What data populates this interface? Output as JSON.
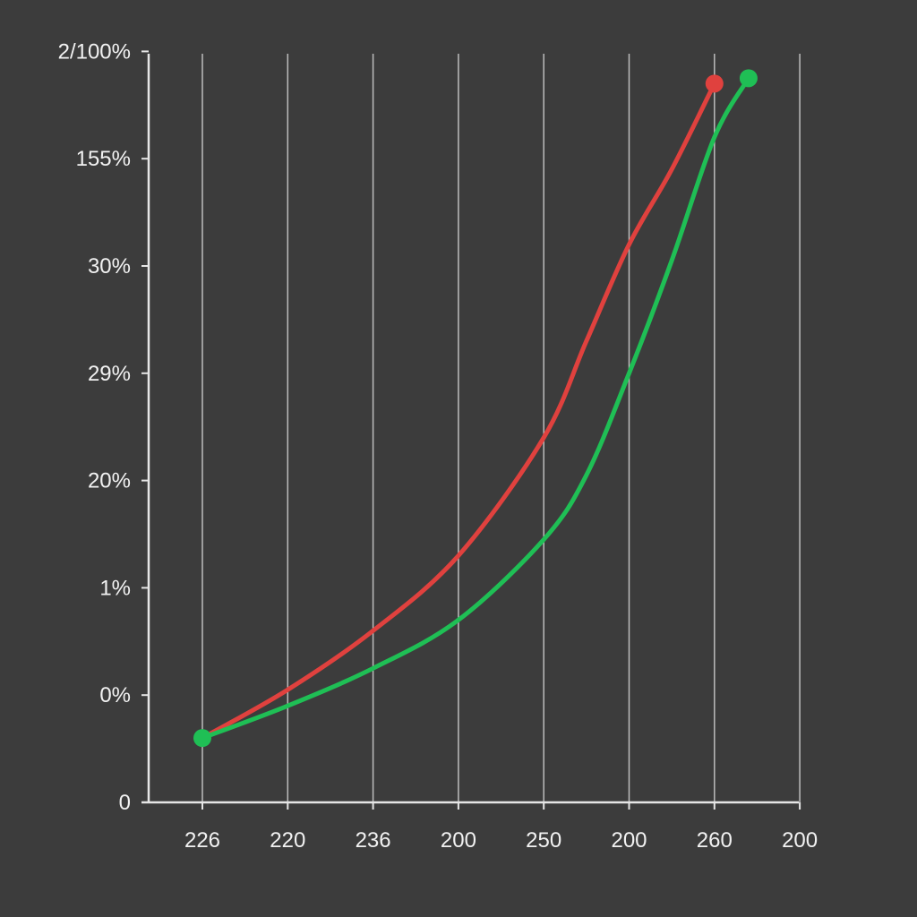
{
  "chart_data": {
    "type": "line",
    "title": "",
    "xlabel": "",
    "ylabel": "",
    "x_tick_labels": [
      "226",
      "220",
      "236",
      "200",
      "250",
      "200",
      "260",
      "200"
    ],
    "y_tick_labels": [
      "0",
      "0%",
      "1%",
      "20%",
      "29%",
      "30%",
      "155%",
      "2/100%"
    ],
    "grid": "vertical",
    "x_positions": [
      0,
      1,
      2,
      3,
      4,
      5,
      6,
      7
    ],
    "y_levels": [
      0,
      1,
      2,
      3,
      4,
      5,
      6,
      7
    ],
    "series": [
      {
        "color": "#e0413e",
        "x": [
          0,
          1,
          2,
          3,
          4,
          4.5,
          5,
          5.5,
          6
        ],
        "y": [
          0.6,
          1.05,
          1.6,
          2.3,
          3.4,
          4.3,
          5.2,
          5.9,
          6.7
        ],
        "end_marker": true
      },
      {
        "color": "#1fbf55",
        "x": [
          0,
          1,
          2,
          3,
          4,
          4.5,
          5,
          5.5,
          6,
          6.4
        ],
        "y": [
          0.6,
          0.9,
          1.25,
          1.7,
          2.45,
          3.05,
          4.0,
          5.05,
          6.2,
          6.75
        ],
        "start_marker": true,
        "end_marker": true
      }
    ],
    "colors": {
      "background": "#3c3c3c",
      "axis": "#e6e6e6",
      "grid": "#bdbdbd",
      "text": "#f2f2f2"
    }
  }
}
